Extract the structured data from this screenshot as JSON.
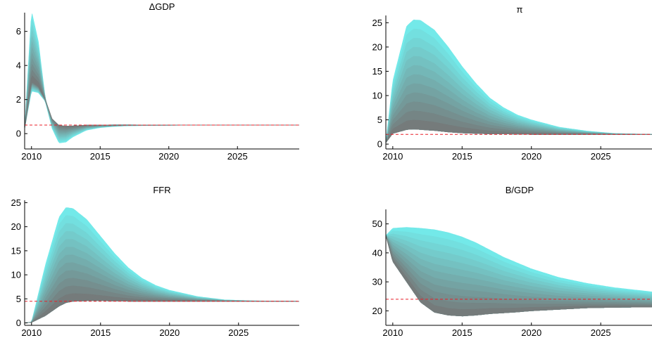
{
  "figure_colors": {
    "band_outer": "#73e9e9",
    "band_inner": "#757171",
    "steady_state_line": "#e8202a"
  },
  "chart_data": [
    {
      "type": "area",
      "title": "ΔGDP",
      "xlim": [
        2009.5,
        2029.5
      ],
      "ylim": [
        -0.9,
        7.1
      ],
      "xticks": [
        2010,
        2015,
        2020,
        2025
      ],
      "yticks": [
        0,
        2,
        4,
        6
      ],
      "steady_state": 0.5,
      "x": [
        2009.5,
        2010,
        2010.5,
        2011,
        2011.5,
        2012,
        2012.5,
        2013,
        2014,
        2015,
        2016,
        2017,
        2019,
        2022,
        2025,
        2029.5
      ],
      "fan_upper": [
        0.3,
        7.2,
        5.4,
        2.1,
        0.6,
        0.35,
        0.4,
        0.45,
        0.5,
        0.5,
        0.52,
        0.52,
        0.5,
        0.5,
        0.5,
        0.5
      ],
      "fan_median": [
        0.3,
        3.1,
        2.8,
        2.0,
        0.9,
        0.5,
        0.45,
        0.45,
        0.5,
        0.5,
        0.5,
        0.5,
        0.5,
        0.5,
        0.5,
        0.5
      ],
      "fan_lower": [
        0.3,
        2.5,
        2.4,
        1.9,
        0.3,
        -0.55,
        -0.5,
        -0.2,
        0.2,
        0.35,
        0.42,
        0.46,
        0.48,
        0.5,
        0.5,
        0.5
      ]
    },
    {
      "type": "area",
      "title": "π",
      "xlim": [
        2009.5,
        2028.8
      ],
      "ylim": [
        -1,
        26.5
      ],
      "xticks": [
        2010,
        2015,
        2020,
        2025
      ],
      "yticks": [
        0,
        5,
        10,
        15,
        20,
        25
      ],
      "steady_state": 2,
      "x": [
        2009.5,
        2010,
        2011,
        2011.5,
        2012,
        2013,
        2014,
        2015,
        2016,
        2017,
        2018,
        2019,
        2020,
        2022,
        2024,
        2026,
        2028.8
      ],
      "fan_upper": [
        0.3,
        13,
        24.3,
        25.6,
        25.5,
        23.5,
        20,
        16,
        12.5,
        9.5,
        7.5,
        6,
        5,
        3.5,
        2.7,
        2.2,
        2
      ],
      "fan_lower": [
        0.3,
        2.2,
        3.0,
        3.1,
        3.0,
        2.8,
        2.5,
        2.3,
        2.2,
        2.1,
        2.1,
        2.05,
        2.0,
        2.0,
        2.0,
        2.0,
        2.0
      ]
    },
    {
      "type": "area",
      "title": "FFR",
      "xlim": [
        2009.5,
        2029.4
      ],
      "ylim": [
        -0.5,
        25.5
      ],
      "xticks": [
        2010,
        2015,
        2020,
        2025
      ],
      "yticks": [
        0,
        5,
        10,
        15,
        20,
        25
      ],
      "steady_state": 4.5,
      "x": [
        2009.5,
        2010,
        2011,
        2012,
        2012.5,
        2013,
        2014,
        2015,
        2016,
        2017,
        2018,
        2019,
        2020,
        2022,
        2024,
        2026,
        2029.4
      ],
      "fan_upper": [
        0,
        0.2,
        12,
        22,
        24,
        23.8,
        21.5,
        18,
        14.5,
        11.5,
        9.3,
        7.8,
        6.8,
        5.5,
        4.8,
        4.6,
        4.5
      ],
      "fan_lower": [
        0,
        0.1,
        1.5,
        3.5,
        4.2,
        4.5,
        4.6,
        4.6,
        4.55,
        4.5,
        4.5,
        4.5,
        4.5,
        4.5,
        4.5,
        4.5,
        4.5
      ]
    },
    {
      "type": "area",
      "title": "B/GDP",
      "xlim": [
        2009.5,
        2028.8
      ],
      "ylim": [
        15,
        55
      ],
      "xticks": [
        2010,
        2015,
        2020,
        2025
      ],
      "yticks": [
        20,
        30,
        40,
        50
      ],
      "steady_state": 24,
      "x": [
        2009.5,
        2010,
        2011,
        2012,
        2013,
        2014,
        2015,
        2016,
        2017,
        2018,
        2019,
        2020,
        2022,
        2024,
        2026,
        2028.8
      ],
      "fan_upper": [
        46,
        48.5,
        48.8,
        48.5,
        48,
        47,
        45.5,
        43.5,
        41,
        38.5,
        36.5,
        34.5,
        31.5,
        29.5,
        28,
        26.5
      ],
      "fan_lower": [
        46,
        37,
        30,
        23,
        19.5,
        18.5,
        18.2,
        18.5,
        19,
        19.3,
        19.6,
        20,
        20.5,
        21,
        21.2,
        21.3
      ]
    }
  ]
}
